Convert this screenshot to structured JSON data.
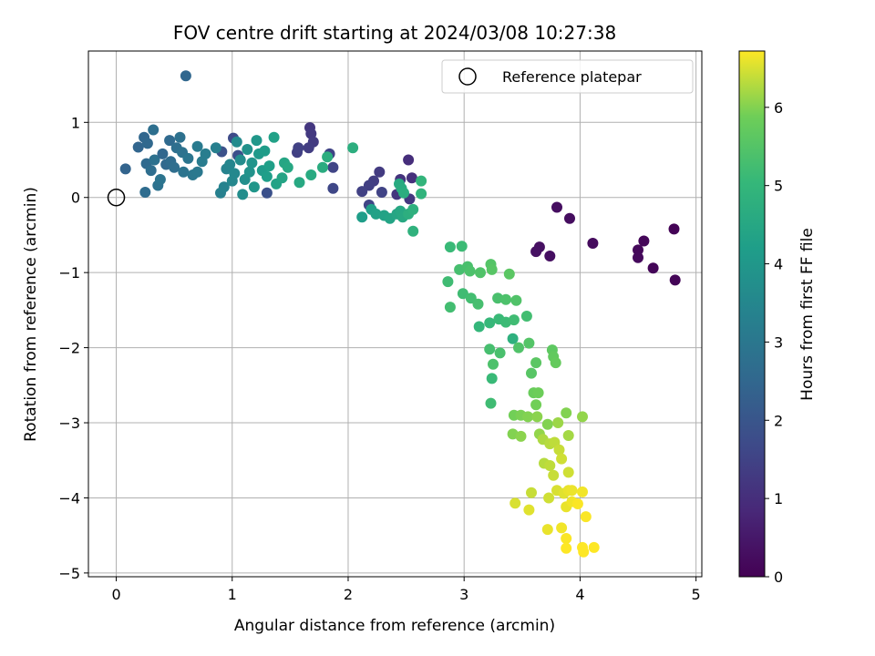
{
  "chart_data": {
    "type": "scatter",
    "title": "FOV centre drift starting at 2024/03/08 10:27:38",
    "xlabel": "Angular distance from reference (arcmin)",
    "ylabel": "Rotation from reference (arcmin)",
    "xlim": [
      -0.24,
      5.05
    ],
    "ylim": [
      -5.05,
      1.95
    ],
    "xticks": [
      0,
      1,
      2,
      3,
      4,
      5
    ],
    "yticks": [
      -5,
      -4,
      -3,
      -2,
      -1,
      0,
      1
    ],
    "grid": true,
    "legend": {
      "placement": "top-right",
      "entries": [
        "Reference platepar"
      ]
    },
    "reference_point": {
      "x": 0,
      "y": 0
    },
    "colorbar": {
      "label": "Hours from first FF file",
      "range": [
        0,
        6.72
      ],
      "ticks": [
        0,
        1,
        2,
        3,
        4,
        5,
        6
      ],
      "colormap": "viridis"
    },
    "points": [
      {
        "x": 4.81,
        "y": -0.42,
        "c": 0.05
      },
      {
        "x": 4.82,
        "y": -1.1,
        "c": 0.08
      },
      {
        "x": 4.63,
        "y": -0.94,
        "c": 0.1
      },
      {
        "x": 4.55,
        "y": -0.58,
        "c": 0.12
      },
      {
        "x": 4.5,
        "y": -0.7,
        "c": 0.15
      },
      {
        "x": 4.5,
        "y": -0.8,
        "c": 0.18
      },
      {
        "x": 4.11,
        "y": -0.61,
        "c": 0.22
      },
      {
        "x": 3.91,
        "y": -0.28,
        "c": 0.25
      },
      {
        "x": 3.8,
        "y": -0.13,
        "c": 0.28
      },
      {
        "x": 3.74,
        "y": -0.78,
        "c": 0.3
      },
      {
        "x": 3.65,
        "y": -0.66,
        "c": 0.33
      },
      {
        "x": 3.62,
        "y": -0.72,
        "c": 0.35
      },
      {
        "x": 1.67,
        "y": 0.93,
        "c": 1.2
      },
      {
        "x": 1.68,
        "y": 0.85,
        "c": 1.25
      },
      {
        "x": 1.7,
        "y": 0.74,
        "c": 1.3
      },
      {
        "x": 1.66,
        "y": 0.66,
        "c": 1.35
      },
      {
        "x": 1.56,
        "y": 0.6,
        "c": 1.4
      },
      {
        "x": 1.57,
        "y": 0.66,
        "c": 1.45
      },
      {
        "x": 1.84,
        "y": 0.58,
        "c": 1.5
      },
      {
        "x": 1.87,
        "y": 0.4,
        "c": 1.55
      },
      {
        "x": 1.87,
        "y": 0.12,
        "c": 1.6
      },
      {
        "x": 2.52,
        "y": 0.5,
        "c": 1.0
      },
      {
        "x": 2.55,
        "y": 0.26,
        "c": 1.05
      },
      {
        "x": 2.45,
        "y": 0.24,
        "c": 1.1
      },
      {
        "x": 2.42,
        "y": 0.04,
        "c": 1.15
      },
      {
        "x": 2.53,
        "y": -0.02,
        "c": 1.2
      },
      {
        "x": 2.27,
        "y": 0.34,
        "c": 1.3
      },
      {
        "x": 2.22,
        "y": 0.22,
        "c": 1.35
      },
      {
        "x": 2.18,
        "y": 0.16,
        "c": 1.4
      },
      {
        "x": 2.12,
        "y": 0.08,
        "c": 1.45
      },
      {
        "x": 2.29,
        "y": 0.07,
        "c": 1.5
      },
      {
        "x": 2.18,
        "y": -0.1,
        "c": 1.55
      },
      {
        "x": 1.01,
        "y": 0.79,
        "c": 1.7
      },
      {
        "x": 1.05,
        "y": 0.56,
        "c": 1.8
      },
      {
        "x": 1.3,
        "y": 0.06,
        "c": 1.85
      },
      {
        "x": 0.91,
        "y": 0.61,
        "c": 1.9
      },
      {
        "x": 0.6,
        "y": 1.62,
        "c": 2.5
      },
      {
        "x": 0.08,
        "y": 0.38,
        "c": 2.4
      },
      {
        "x": 0.19,
        "y": 0.67,
        "c": 2.45
      },
      {
        "x": 0.24,
        "y": 0.8,
        "c": 2.5
      },
      {
        "x": 0.27,
        "y": 0.72,
        "c": 2.55
      },
      {
        "x": 0.26,
        "y": 0.45,
        "c": 2.6
      },
      {
        "x": 0.25,
        "y": 0.07,
        "c": 2.65
      },
      {
        "x": 0.3,
        "y": 0.36,
        "c": 2.7
      },
      {
        "x": 0.32,
        "y": 0.9,
        "c": 2.75
      },
      {
        "x": 0.33,
        "y": 0.5,
        "c": 2.8
      },
      {
        "x": 0.36,
        "y": 0.16,
        "c": 2.85
      },
      {
        "x": 0.38,
        "y": 0.24,
        "c": 2.9
      },
      {
        "x": 0.4,
        "y": 0.58,
        "c": 2.5
      },
      {
        "x": 0.43,
        "y": 0.44,
        "c": 2.55
      },
      {
        "x": 0.46,
        "y": 0.76,
        "c": 2.6
      },
      {
        "x": 0.47,
        "y": 0.48,
        "c": 2.65
      },
      {
        "x": 0.5,
        "y": 0.4,
        "c": 2.7
      },
      {
        "x": 0.52,
        "y": 0.66,
        "c": 2.75
      },
      {
        "x": 0.55,
        "y": 0.8,
        "c": 2.8
      },
      {
        "x": 0.57,
        "y": 0.6,
        "c": 2.85
      },
      {
        "x": 0.58,
        "y": 0.34,
        "c": 2.9
      },
      {
        "x": 0.62,
        "y": 0.52,
        "c": 2.95
      },
      {
        "x": 0.66,
        "y": 0.3,
        "c": 3.0
      },
      {
        "x": 0.7,
        "y": 0.34,
        "c": 3.05
      },
      {
        "x": 0.7,
        "y": 0.68,
        "c": 3.1
      },
      {
        "x": 0.74,
        "y": 0.48,
        "c": 3.15
      },
      {
        "x": 0.77,
        "y": 0.58,
        "c": 3.2
      },
      {
        "x": 0.86,
        "y": 0.66,
        "c": 3.25
      },
      {
        "x": 0.9,
        "y": 0.06,
        "c": 3.3
      },
      {
        "x": 0.93,
        "y": 0.14,
        "c": 3.35
      },
      {
        "x": 0.95,
        "y": 0.38,
        "c": 3.4
      },
      {
        "x": 0.98,
        "y": 0.44,
        "c": 3.45
      },
      {
        "x": 1.0,
        "y": 0.22,
        "c": 3.5
      },
      {
        "x": 1.02,
        "y": 0.32,
        "c": 3.55
      },
      {
        "x": 1.04,
        "y": 0.74,
        "c": 3.6
      },
      {
        "x": 1.07,
        "y": 0.5,
        "c": 3.65
      },
      {
        "x": 1.09,
        "y": 0.04,
        "c": 3.7
      },
      {
        "x": 1.11,
        "y": 0.24,
        "c": 3.75
      },
      {
        "x": 1.13,
        "y": 0.64,
        "c": 3.8
      },
      {
        "x": 1.15,
        "y": 0.34,
        "c": 3.85
      },
      {
        "x": 1.17,
        "y": 0.46,
        "c": 3.9
      },
      {
        "x": 1.19,
        "y": 0.14,
        "c": 3.95
      },
      {
        "x": 1.21,
        "y": 0.76,
        "c": 4.0
      },
      {
        "x": 1.23,
        "y": 0.58,
        "c": 4.05
      },
      {
        "x": 1.26,
        "y": 0.36,
        "c": 4.1
      },
      {
        "x": 1.28,
        "y": 0.62,
        "c": 4.15
      },
      {
        "x": 1.3,
        "y": 0.28,
        "c": 4.2
      },
      {
        "x": 1.32,
        "y": 0.42,
        "c": 4.25
      },
      {
        "x": 1.36,
        "y": 0.8,
        "c": 4.3
      },
      {
        "x": 1.38,
        "y": 0.18,
        "c": 4.35
      },
      {
        "x": 1.43,
        "y": 0.26,
        "c": 4.4
      },
      {
        "x": 1.45,
        "y": 0.46,
        "c": 4.45
      },
      {
        "x": 1.48,
        "y": 0.4,
        "c": 4.5
      },
      {
        "x": 1.58,
        "y": 0.2,
        "c": 4.55
      },
      {
        "x": 1.68,
        "y": 0.3,
        "c": 4.6
      },
      {
        "x": 1.78,
        "y": 0.4,
        "c": 4.65
      },
      {
        "x": 1.82,
        "y": 0.54,
        "c": 4.7
      },
      {
        "x": 2.04,
        "y": 0.66,
        "c": 4.75
      },
      {
        "x": 2.12,
        "y": -0.26,
        "c": 4.2
      },
      {
        "x": 2.2,
        "y": -0.16,
        "c": 4.25
      },
      {
        "x": 2.24,
        "y": -0.22,
        "c": 4.3
      },
      {
        "x": 2.31,
        "y": -0.24,
        "c": 4.35
      },
      {
        "x": 2.36,
        "y": -0.28,
        "c": 4.4
      },
      {
        "x": 2.42,
        "y": -0.22,
        "c": 4.45
      },
      {
        "x": 2.45,
        "y": -0.18,
        "c": 4.5
      },
      {
        "x": 2.47,
        "y": -0.26,
        "c": 4.55
      },
      {
        "x": 2.44,
        "y": 0.18,
        "c": 4.6
      },
      {
        "x": 2.46,
        "y": 0.12,
        "c": 4.65
      },
      {
        "x": 2.48,
        "y": 0.06,
        "c": 4.7
      },
      {
        "x": 2.52,
        "y": -0.22,
        "c": 4.75
      },
      {
        "x": 2.56,
        "y": -0.16,
        "c": 4.8
      },
      {
        "x": 2.56,
        "y": -0.45,
        "c": 4.85
      },
      {
        "x": 2.63,
        "y": 0.05,
        "c": 4.9
      },
      {
        "x": 2.63,
        "y": 0.22,
        "c": 4.95
      },
      {
        "x": 2.88,
        "y": -0.66,
        "c": 5.1
      },
      {
        "x": 2.98,
        "y": -0.65,
        "c": 5.15
      },
      {
        "x": 2.86,
        "y": -1.12,
        "c": 5.2
      },
      {
        "x": 2.88,
        "y": -1.46,
        "c": 5.25
      },
      {
        "x": 2.96,
        "y": -0.96,
        "c": 5.3
      },
      {
        "x": 3.03,
        "y": -0.92,
        "c": 5.35
      },
      {
        "x": 3.05,
        "y": -0.98,
        "c": 5.4
      },
      {
        "x": 3.14,
        "y": -1.0,
        "c": 5.45
      },
      {
        "x": 3.23,
        "y": -0.89,
        "c": 5.5
      },
      {
        "x": 3.24,
        "y": -0.96,
        "c": 5.55
      },
      {
        "x": 3.39,
        "y": -1.02,
        "c": 5.6
      },
      {
        "x": 2.99,
        "y": -1.28,
        "c": 5.2
      },
      {
        "x": 3.06,
        "y": -1.34,
        "c": 5.25
      },
      {
        "x": 3.12,
        "y": -1.42,
        "c": 5.3
      },
      {
        "x": 3.29,
        "y": -1.34,
        "c": 5.35
      },
      {
        "x": 3.36,
        "y": -1.36,
        "c": 5.4
      },
      {
        "x": 3.45,
        "y": -1.37,
        "c": 5.45
      },
      {
        "x": 3.13,
        "y": -1.72,
        "c": 5.0
      },
      {
        "x": 3.22,
        "y": -1.67,
        "c": 5.05
      },
      {
        "x": 3.3,
        "y": -1.62,
        "c": 5.1
      },
      {
        "x": 3.36,
        "y": -1.66,
        "c": 5.15
      },
      {
        "x": 3.43,
        "y": -1.63,
        "c": 5.2
      },
      {
        "x": 3.54,
        "y": -1.58,
        "c": 5.25
      },
      {
        "x": 3.22,
        "y": -2.02,
        "c": 5.3
      },
      {
        "x": 3.31,
        "y": -2.07,
        "c": 5.35
      },
      {
        "x": 3.25,
        "y": -2.22,
        "c": 5.4
      },
      {
        "x": 3.42,
        "y": -1.88,
        "c": 4.8
      },
      {
        "x": 3.47,
        "y": -2.0,
        "c": 5.45
      },
      {
        "x": 3.56,
        "y": -1.94,
        "c": 5.5
      },
      {
        "x": 3.58,
        "y": -2.34,
        "c": 5.55
      },
      {
        "x": 3.62,
        "y": -2.2,
        "c": 5.6
      },
      {
        "x": 3.76,
        "y": -2.03,
        "c": 5.65
      },
      {
        "x": 3.77,
        "y": -2.12,
        "c": 5.7
      },
      {
        "x": 3.79,
        "y": -2.2,
        "c": 5.75
      },
      {
        "x": 3.24,
        "y": -2.41,
        "c": 5.1
      },
      {
        "x": 3.23,
        "y": -2.74,
        "c": 5.2
      },
      {
        "x": 3.6,
        "y": -2.6,
        "c": 5.8
      },
      {
        "x": 3.64,
        "y": -2.6,
        "c": 5.85
      },
      {
        "x": 3.62,
        "y": -2.76,
        "c": 5.9
      },
      {
        "x": 3.43,
        "y": -2.9,
        "c": 5.9
      },
      {
        "x": 3.49,
        "y": -2.9,
        "c": 5.95
      },
      {
        "x": 3.55,
        "y": -2.92,
        "c": 6.0
      },
      {
        "x": 3.63,
        "y": -2.92,
        "c": 6.05
      },
      {
        "x": 3.88,
        "y": -2.87,
        "c": 6.0
      },
      {
        "x": 4.02,
        "y": -2.92,
        "c": 6.1
      },
      {
        "x": 3.42,
        "y": -3.15,
        "c": 6.0
      },
      {
        "x": 3.49,
        "y": -3.18,
        "c": 6.05
      },
      {
        "x": 3.65,
        "y": -3.15,
        "c": 6.1
      },
      {
        "x": 3.72,
        "y": -3.02,
        "c": 6.0
      },
      {
        "x": 3.81,
        "y": -3.0,
        "c": 6.15
      },
      {
        "x": 3.9,
        "y": -3.17,
        "c": 6.2
      },
      {
        "x": 3.68,
        "y": -3.22,
        "c": 6.25
      },
      {
        "x": 3.74,
        "y": -3.28,
        "c": 6.3
      },
      {
        "x": 3.78,
        "y": -3.26,
        "c": 6.35
      },
      {
        "x": 3.82,
        "y": -3.36,
        "c": 6.4
      },
      {
        "x": 3.84,
        "y": -3.48,
        "c": 6.45
      },
      {
        "x": 3.69,
        "y": -3.54,
        "c": 6.3
      },
      {
        "x": 3.74,
        "y": -3.57,
        "c": 6.35
      },
      {
        "x": 3.77,
        "y": -3.7,
        "c": 6.4
      },
      {
        "x": 3.9,
        "y": -3.66,
        "c": 6.45
      },
      {
        "x": 3.58,
        "y": -3.93,
        "c": 6.4
      },
      {
        "x": 3.73,
        "y": -4.0,
        "c": 6.45
      },
      {
        "x": 3.8,
        "y": -3.9,
        "c": 6.5
      },
      {
        "x": 3.86,
        "y": -3.94,
        "c": 6.55
      },
      {
        "x": 3.9,
        "y": -3.9,
        "c": 6.6
      },
      {
        "x": 3.93,
        "y": -3.9,
        "c": 6.62
      },
      {
        "x": 4.02,
        "y": -3.92,
        "c": 6.65
      },
      {
        "x": 3.44,
        "y": -4.07,
        "c": 6.5
      },
      {
        "x": 3.56,
        "y": -4.16,
        "c": 6.55
      },
      {
        "x": 3.88,
        "y": -4.12,
        "c": 6.6
      },
      {
        "x": 3.93,
        "y": -4.05,
        "c": 6.65
      },
      {
        "x": 3.98,
        "y": -4.08,
        "c": 6.7
      },
      {
        "x": 4.05,
        "y": -4.25,
        "c": 6.7
      },
      {
        "x": 3.72,
        "y": -4.42,
        "c": 6.6
      },
      {
        "x": 3.84,
        "y": -4.4,
        "c": 6.65
      },
      {
        "x": 3.88,
        "y": -4.54,
        "c": 6.7
      },
      {
        "x": 3.88,
        "y": -4.67,
        "c": 6.72
      },
      {
        "x": 4.02,
        "y": -4.66,
        "c": 6.72
      },
      {
        "x": 4.03,
        "y": -4.72,
        "c": 6.72
      },
      {
        "x": 4.12,
        "y": -4.66,
        "c": 6.72
      }
    ]
  }
}
